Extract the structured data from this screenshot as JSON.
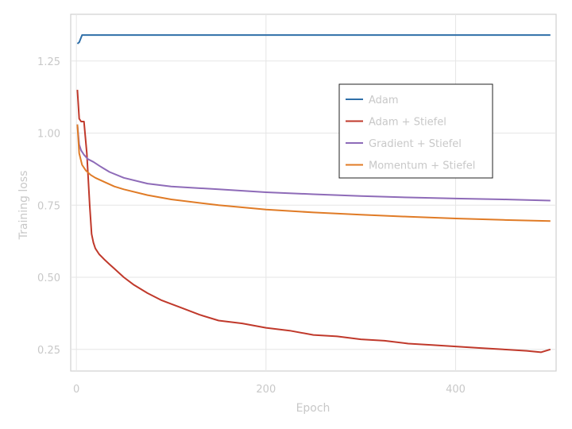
{
  "chart_data": {
    "type": "line",
    "xlabel": "Epoch",
    "ylabel": "Training loss",
    "xlim": [
      -6,
      506
    ],
    "ylim": [
      0.175,
      1.412
    ],
    "x_ticks": [
      0,
      200,
      400
    ],
    "x_tick_labels": [
      "0",
      "200",
      "400"
    ],
    "y_ticks": [
      0.25,
      0.5,
      0.75,
      1.0,
      1.25
    ],
    "y_tick_labels": [
      "0.25",
      "0.50",
      "0.75",
      "1.00",
      "1.25"
    ],
    "grid": true,
    "legend_position": "top-right",
    "series": [
      {
        "name": "Adam",
        "color": "#2f6fa8",
        "x": [
          1,
          3,
          6,
          500
        ],
        "y": [
          1.31,
          1.315,
          1.34,
          1.34
        ]
      },
      {
        "name": "Adam + Stiefel",
        "color": "#c0392b",
        "x": [
          1,
          3,
          5,
          8,
          11,
          14,
          16,
          18,
          20,
          24,
          30,
          35,
          40,
          50,
          60,
          75,
          90,
          110,
          130,
          150,
          175,
          200,
          225,
          250,
          275,
          300,
          325,
          350,
          375,
          400,
          425,
          450,
          475,
          490,
          500
        ],
        "y": [
          1.15,
          1.05,
          1.04,
          1.04,
          0.93,
          0.75,
          0.65,
          0.62,
          0.6,
          0.58,
          0.56,
          0.545,
          0.53,
          0.5,
          0.475,
          0.445,
          0.42,
          0.395,
          0.37,
          0.35,
          0.34,
          0.325,
          0.315,
          0.3,
          0.295,
          0.285,
          0.28,
          0.27,
          0.265,
          0.26,
          0.255,
          0.25,
          0.245,
          0.24,
          0.25
        ]
      },
      {
        "name": "Gradient + Stiefel",
        "color": "#8e6bb8",
        "x": [
          1,
          3,
          5,
          8,
          12,
          18,
          25,
          35,
          50,
          75,
          100,
          150,
          200,
          250,
          300,
          350,
          400,
          450,
          500
        ],
        "y": [
          1.03,
          0.96,
          0.94,
          0.925,
          0.91,
          0.9,
          0.885,
          0.865,
          0.845,
          0.825,
          0.815,
          0.805,
          0.795,
          0.788,
          0.782,
          0.777,
          0.773,
          0.77,
          0.766
        ]
      },
      {
        "name": "Momentum + Stiefel",
        "color": "#e07b26",
        "x": [
          1,
          3,
          6,
          10,
          15,
          20,
          30,
          40,
          50,
          75,
          100,
          150,
          200,
          250,
          300,
          350,
          400,
          450,
          500
        ],
        "y": [
          1.03,
          0.93,
          0.89,
          0.87,
          0.855,
          0.845,
          0.83,
          0.815,
          0.805,
          0.785,
          0.77,
          0.75,
          0.735,
          0.725,
          0.717,
          0.71,
          0.704,
          0.699,
          0.695
        ]
      }
    ]
  }
}
